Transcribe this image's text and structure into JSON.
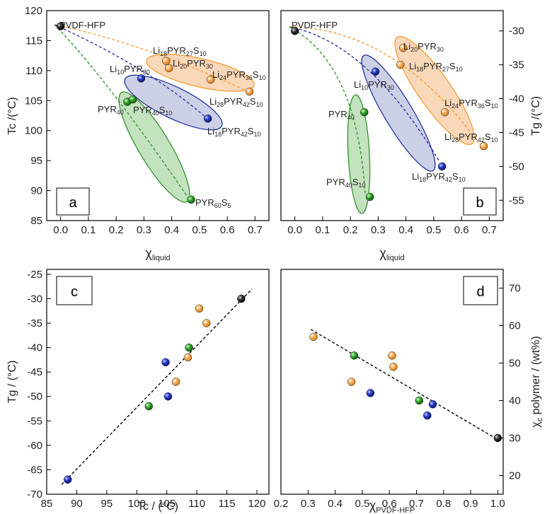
{
  "colors": {
    "orange": "#f39a2e",
    "blue": "#1b2a9c",
    "green": "#2a8a24",
    "black": "#111111",
    "orange_fill": "#f7c9a2",
    "blue_fill": "#b7bcdc",
    "green_fill": "#a9d6a2"
  },
  "chart_data": [
    {
      "type": "scatter",
      "panel_letter": "a",
      "xlabel": "χ",
      "xlabel_sub": "liquid",
      "ylabel": "Tc /(°C)",
      "xlim": [
        -0.05,
        0.75
      ],
      "ylim": [
        85,
        120
      ],
      "xticks": [
        "0.0",
        "0.1",
        "0.2",
        "0.3",
        "0.4",
        "0.5",
        "0.6",
        "0.7"
      ],
      "yticks": [
        "85",
        "90",
        "95",
        "100",
        "105",
        "110",
        "115",
        "120"
      ],
      "points": [
        {
          "x": 0.0,
          "y": 117.4,
          "color": "black",
          "label": "PVDF-HFP"
        },
        {
          "x": 0.38,
          "y": 111.6,
          "color": "orange",
          "label": "Li18PYR27S10"
        },
        {
          "x": 0.39,
          "y": 110.4,
          "color": "orange",
          "label": "Li20PYR30"
        },
        {
          "x": 0.54,
          "y": 108.5,
          "color": "orange",
          "label": "Li24PYR36S10"
        },
        {
          "x": 0.68,
          "y": 106.5,
          "color": "orange",
          "label": "Li28PYR42S10"
        },
        {
          "x": 0.29,
          "y": 108.7,
          "color": "blue",
          "label": "Li10PYR30"
        },
        {
          "x": 0.53,
          "y": 102.0,
          "color": "blue",
          "label": "Li18PYR42S10"
        },
        {
          "x": 0.24,
          "y": 104.8,
          "color": "green",
          "label": "PYR40"
        },
        {
          "x": 0.26,
          "y": 105.2,
          "color": "green",
          "label": "PYR40S10"
        },
        {
          "x": 0.47,
          "y": 88.5,
          "color": "green",
          "label": "PYR60S5"
        }
      ]
    },
    {
      "type": "scatter",
      "panel_letter": "b",
      "xlabel": "χ",
      "xlabel_sub": "liquid",
      "ylabel": "Tg /(°C)",
      "xlim": [
        -0.05,
        0.75
      ],
      "ylim": [
        -58,
        -27
      ],
      "xticks": [
        "0.0",
        "0.1",
        "0.2",
        "0.3",
        "0.4",
        "0.5",
        "0.6",
        "0.7"
      ],
      "yticks": [
        "-55",
        "-50",
        "-45",
        "-40",
        "-35",
        "-30"
      ],
      "points": [
        {
          "x": 0.0,
          "y": -30,
          "color": "black",
          "label": "PVDF-HFP"
        },
        {
          "x": 0.39,
          "y": -32.5,
          "color": "orange",
          "label": "Li20PYR30"
        },
        {
          "x": 0.38,
          "y": -35.0,
          "color": "orange",
          "label": "Li18PYR27S10"
        },
        {
          "x": 0.54,
          "y": -42.0,
          "color": "orange",
          "label": "Li24PYR36S10"
        },
        {
          "x": 0.68,
          "y": -47.0,
          "color": "orange",
          "label": "Li28PYR42S10"
        },
        {
          "x": 0.29,
          "y": -36.0,
          "color": "blue",
          "label": "Li10PYR30"
        },
        {
          "x": 0.53,
          "y": -50.0,
          "color": "blue",
          "label": "Li18PYR42S10"
        },
        {
          "x": 0.25,
          "y": -42.0,
          "color": "green",
          "label": "PYR40"
        },
        {
          "x": 0.27,
          "y": -54.5,
          "color": "green",
          "label": "PYR40S10"
        }
      ]
    },
    {
      "type": "scatter",
      "panel_letter": "c",
      "xlabel": "Tc / (°C)",
      "xlabel_sub": "",
      "ylabel": "Tg / (°C)",
      "xlim": [
        85,
        122
      ],
      "ylim": [
        -70,
        -24
      ],
      "xticks": [
        "85",
        "90",
        "95",
        "100",
        "105",
        "110",
        "115",
        "120"
      ],
      "yticks": [
        "-70",
        "-65",
        "-60",
        "-55",
        "-50",
        "-45",
        "-40",
        "-35",
        "-30",
        "-25"
      ],
      "points": [
        {
          "x": 88.5,
          "y": -67,
          "color": "blue"
        },
        {
          "x": 102.0,
          "y": -52,
          "color": "green"
        },
        {
          "x": 104.8,
          "y": -43,
          "color": "blue"
        },
        {
          "x": 105.2,
          "y": -50,
          "color": "blue"
        },
        {
          "x": 106.5,
          "y": -47,
          "color": "orange"
        },
        {
          "x": 108.5,
          "y": -42,
          "color": "orange"
        },
        {
          "x": 108.7,
          "y": -40,
          "color": "green"
        },
        {
          "x": 110.4,
          "y": -32,
          "color": "orange"
        },
        {
          "x": 111.6,
          "y": -35,
          "color": "orange"
        },
        {
          "x": 117.4,
          "y": -30,
          "color": "black"
        }
      ],
      "fit_line": [
        [
          87.5,
          -68.0
        ],
        [
          119.2,
          -28.0
        ]
      ]
    },
    {
      "type": "scatter",
      "panel_letter": "d",
      "xlabel": "χ",
      "xlabel_sub": "PVDF-HFP",
      "ylabel": "χ",
      "ylabel_sub": "c",
      "ylabel_rest": " polymer / (wt%)",
      "xlim": [
        0.2,
        1.02
      ],
      "ylim": [
        15,
        75
      ],
      "xticks": [
        "0.2",
        "0.3",
        "0.4",
        "0.5",
        "0.6",
        "0.7",
        "0.8",
        "0.9",
        "1.0"
      ],
      "yticks": [
        "20",
        "30",
        "40",
        "50",
        "60",
        "70"
      ],
      "points": [
        {
          "x": 0.32,
          "y": 57,
          "color": "orange"
        },
        {
          "x": 0.46,
          "y": 45,
          "color": "orange"
        },
        {
          "x": 0.47,
          "y": 52,
          "color": "green"
        },
        {
          "x": 0.53,
          "y": 42,
          "color": "blue"
        },
        {
          "x": 0.61,
          "y": 52,
          "color": "orange"
        },
        {
          "x": 0.615,
          "y": 49,
          "color": "orange"
        },
        {
          "x": 0.71,
          "y": 40,
          "color": "green"
        },
        {
          "x": 0.74,
          "y": 36,
          "color": "blue"
        },
        {
          "x": 0.76,
          "y": 39,
          "color": "blue"
        },
        {
          "x": 1.0,
          "y": 30,
          "color": "black"
        }
      ],
      "fit_line": [
        [
          0.31,
          59
        ],
        [
          0.99,
          30
        ]
      ]
    }
  ]
}
